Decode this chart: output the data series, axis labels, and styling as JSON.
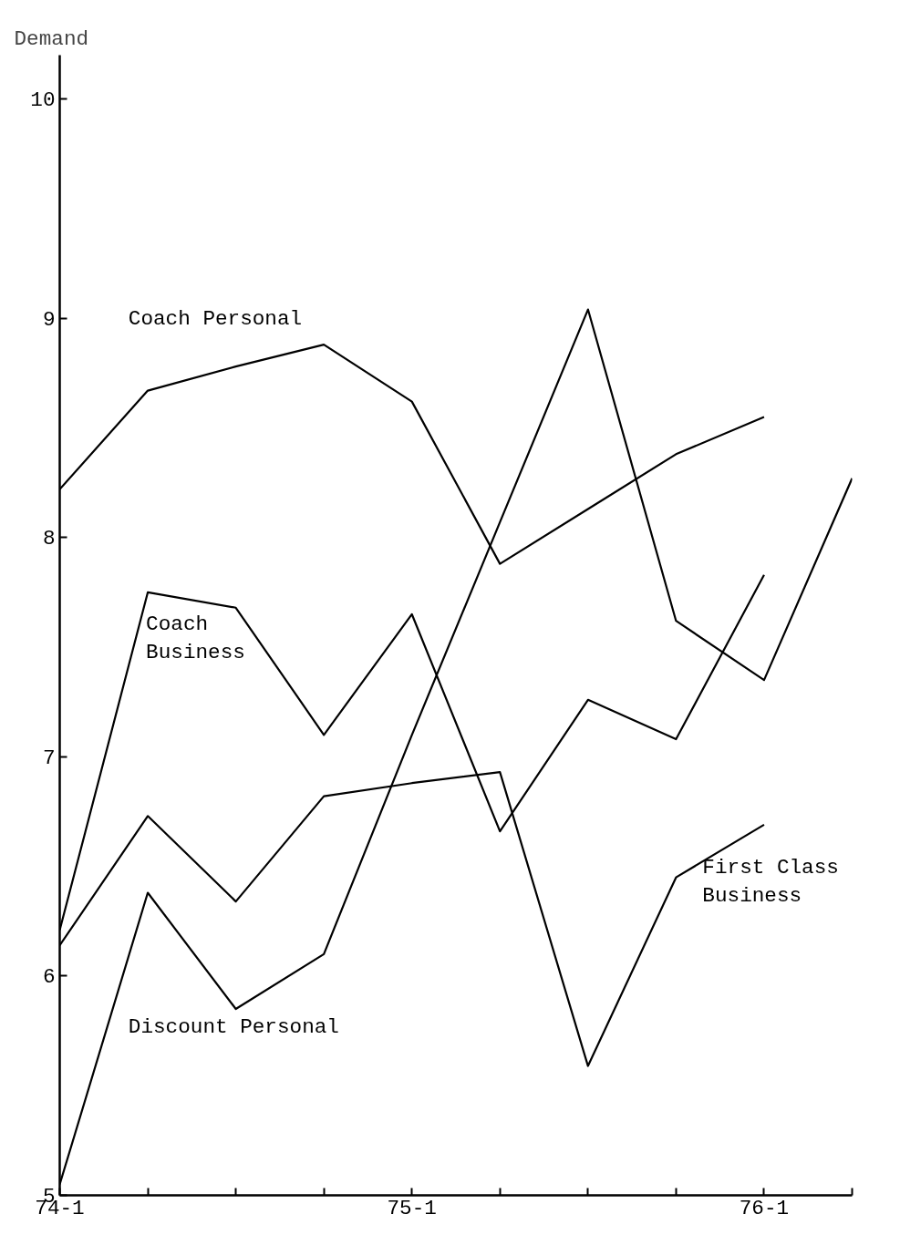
{
  "chart_data": {
    "type": "line",
    "ylabel": "Demand",
    "ylim": [
      5,
      10.2
    ],
    "categories": [
      "74-1",
      null,
      null,
      null,
      "75-1",
      null,
      null,
      null,
      "76-1",
      null
    ],
    "yticks": [
      5,
      6,
      7,
      8,
      9,
      10
    ],
    "grid": false,
    "marker": "none",
    "line_style": "solid",
    "series": [
      {
        "name": "Coach Personal",
        "color": "#000000",
        "values": [
          8.22,
          8.67,
          8.78,
          8.88,
          8.62,
          7.88,
          8.13,
          8.38,
          8.55,
          null
        ]
      },
      {
        "name": "Coach\nBusiness",
        "color": "#000000",
        "values": [
          6.21,
          7.75,
          7.68,
          7.1,
          7.65,
          6.66,
          7.26,
          7.08,
          7.83,
          null
        ]
      },
      {
        "name": "Discount Personal",
        "color": "#000000",
        "values": [
          5.05,
          6.38,
          5.85,
          6.1,
          7.1,
          8.07,
          9.04,
          7.62,
          7.35,
          8.27
        ]
      },
      {
        "name": "First Class\nBusiness",
        "color": "#000000",
        "values": [
          6.14,
          6.73,
          6.34,
          6.82,
          6.88,
          6.93,
          5.59,
          6.45,
          6.69,
          null
        ]
      }
    ]
  }
}
